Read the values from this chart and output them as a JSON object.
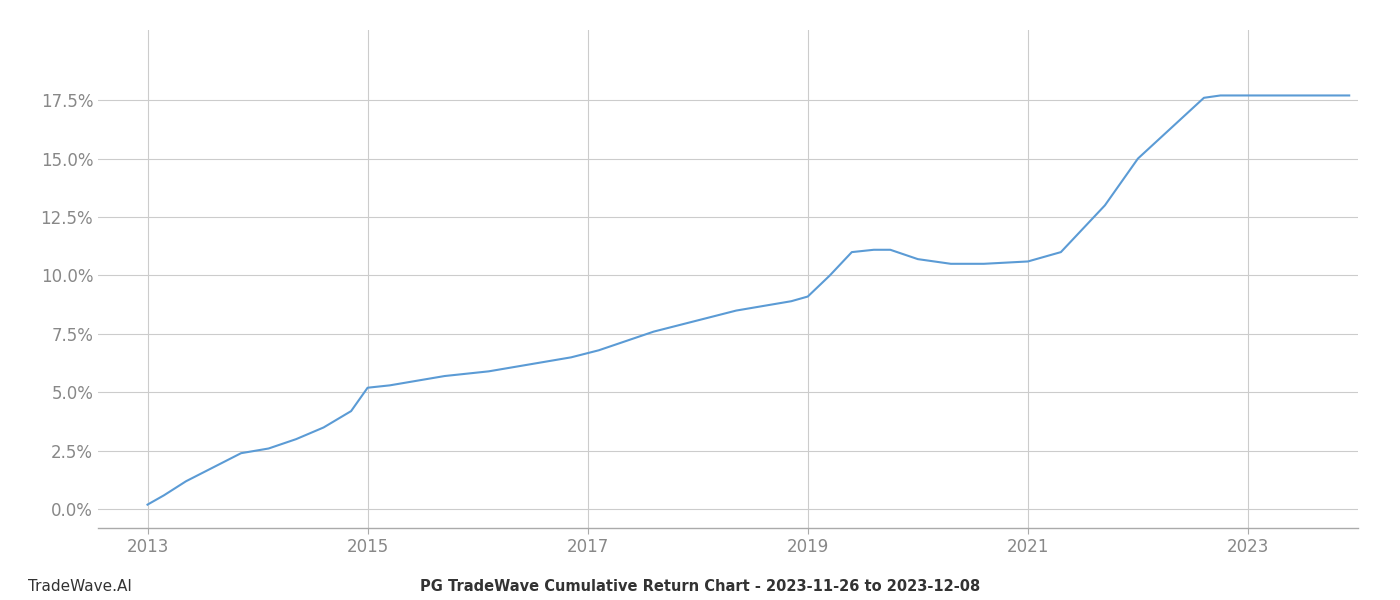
{
  "title": "PG TradeWave Cumulative Return Chart - 2023-11-26 to 2023-12-08",
  "watermark": "TradeWave.AI",
  "line_color": "#5b9bd5",
  "background_color": "#ffffff",
  "grid_color": "#cccccc",
  "x_years": [
    2013.0,
    2013.15,
    2013.35,
    2013.6,
    2013.85,
    2014.1,
    2014.35,
    2014.6,
    2014.85,
    2015.0,
    2015.2,
    2015.45,
    2015.7,
    2015.9,
    2016.1,
    2016.35,
    2016.6,
    2016.85,
    2017.1,
    2017.35,
    2017.6,
    2017.85,
    2018.1,
    2018.35,
    2018.6,
    2018.85,
    2019.0,
    2019.2,
    2019.4,
    2019.6,
    2019.75,
    2020.0,
    2020.3,
    2020.6,
    2021.0,
    2021.3,
    2021.7,
    2022.0,
    2022.3,
    2022.6,
    2022.75,
    2023.0,
    2023.5,
    2023.92
  ],
  "y_values": [
    0.002,
    0.006,
    0.012,
    0.018,
    0.024,
    0.026,
    0.03,
    0.035,
    0.042,
    0.052,
    0.053,
    0.055,
    0.057,
    0.058,
    0.059,
    0.061,
    0.063,
    0.065,
    0.068,
    0.072,
    0.076,
    0.079,
    0.082,
    0.085,
    0.087,
    0.089,
    0.091,
    0.1,
    0.11,
    0.111,
    0.111,
    0.107,
    0.105,
    0.105,
    0.106,
    0.11,
    0.13,
    0.15,
    0.163,
    0.176,
    0.177,
    0.177,
    0.177,
    0.177
  ],
  "xlim": [
    2012.55,
    2024.0
  ],
  "ylim": [
    -0.008,
    0.205
  ],
  "yticks": [
    0.0,
    0.025,
    0.05,
    0.075,
    0.1,
    0.125,
    0.15,
    0.175
  ],
  "xticks": [
    2013,
    2015,
    2017,
    2019,
    2021,
    2023
  ],
  "line_width": 1.5,
  "title_fontsize": 10.5,
  "watermark_fontsize": 11,
  "tick_fontsize": 12,
  "tick_color": "#888888",
  "title_color": "#333333",
  "watermark_color": "#333333"
}
